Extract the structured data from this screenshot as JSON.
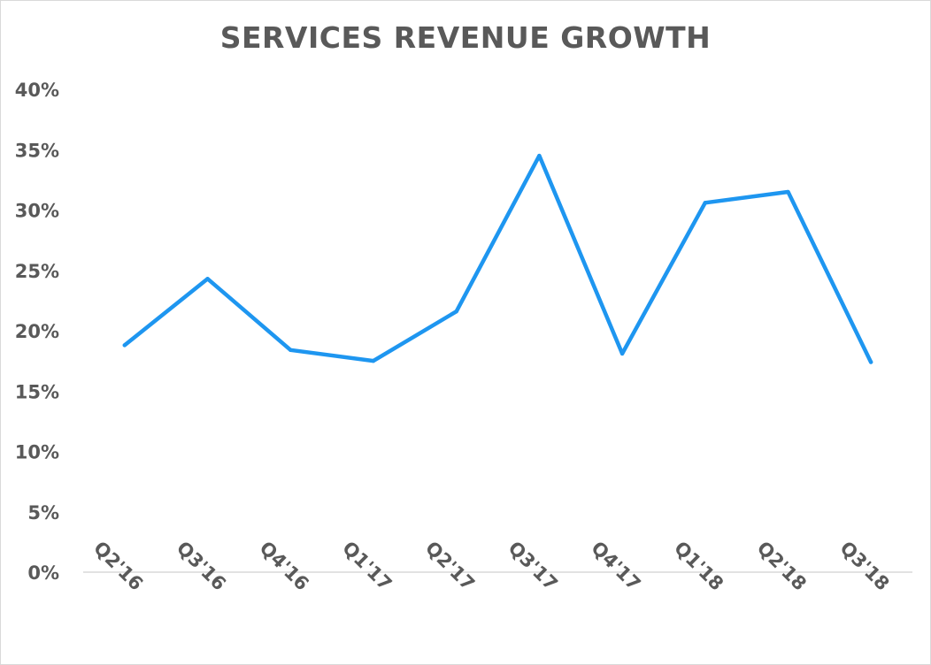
{
  "chart_data": {
    "type": "line",
    "title": "SERVICES REVENUE GROWTH",
    "xlabel": "",
    "ylabel": "",
    "categories": [
      "Q2'16",
      "Q3'16",
      "Q4'16",
      "Q1'17",
      "Q2'17",
      "Q3'17",
      "Q4'17",
      "Q1'18",
      "Q2'18",
      "Q3'18"
    ],
    "series": [
      {
        "values": [
          18.8,
          24.3,
          18.4,
          17.5,
          21.6,
          34.5,
          18.1,
          30.6,
          31.5,
          17.4
        ],
        "color": "#1e96f0"
      }
    ],
    "ylim": [
      0,
      40
    ],
    "yticks": [
      "0%",
      "5%",
      "10%",
      "15%",
      "20%",
      "25%",
      "30%",
      "35%",
      "40%"
    ],
    "ytick_values": [
      0,
      5,
      10,
      15,
      20,
      25,
      30,
      35,
      40
    ],
    "grid": false,
    "legend": "none"
  }
}
